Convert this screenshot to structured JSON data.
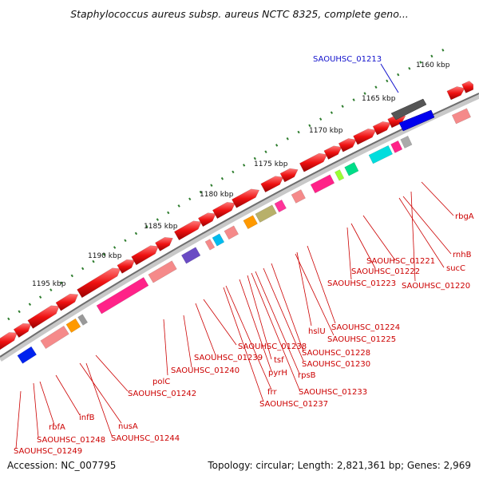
{
  "title": "Staphylococcus aureus subsp. aureus NCTC 8325, complete geno...",
  "footer": {
    "accession": "Accession: NC_007795",
    "genome_info": "Topology: circular; Length: 2,821,361 bp; Genes: 2,969"
  },
  "scale_labels": [
    "1160 kbp",
    "1165 kbp",
    "1170 kbp",
    "1175 kbp",
    "1180 kbp",
    "1185 kbp",
    "1190 kbp",
    "1195 kbp"
  ],
  "highlighted_gene": "SAOUHSC_01213",
  "gene_labels": [
    "rbgA",
    "rnhB",
    "sucC",
    "SAOUHSC_01220",
    "SAOUHSC_01221",
    "SAOUHSC_01222",
    "SAOUHSC_01223",
    "hslU",
    "SAOUHSC_01224",
    "SAOUHSC_01225",
    "SAOUHSC_01228",
    "SAOUHSC_01230",
    "SAOUHSC_01238",
    "SAOUHSC_01239",
    "tsf",
    "pyrH",
    "rpsB",
    "SAOUHSC_01233",
    "frr",
    "SAOUHSC_01237",
    "SAOUHSC_01240",
    "polC",
    "SAOUHSC_01242",
    "nusA",
    "SAOUHSC_01244",
    "infB",
    "rbfA",
    "SAOUHSC_01248",
    "SAOUHSC_01249"
  ],
  "colors": {
    "cds": "#ee1111",
    "gene_label": "#cc0000",
    "highlight": "#1111cc",
    "backbone": "#888888",
    "tick": "#2e7d2e"
  }
}
